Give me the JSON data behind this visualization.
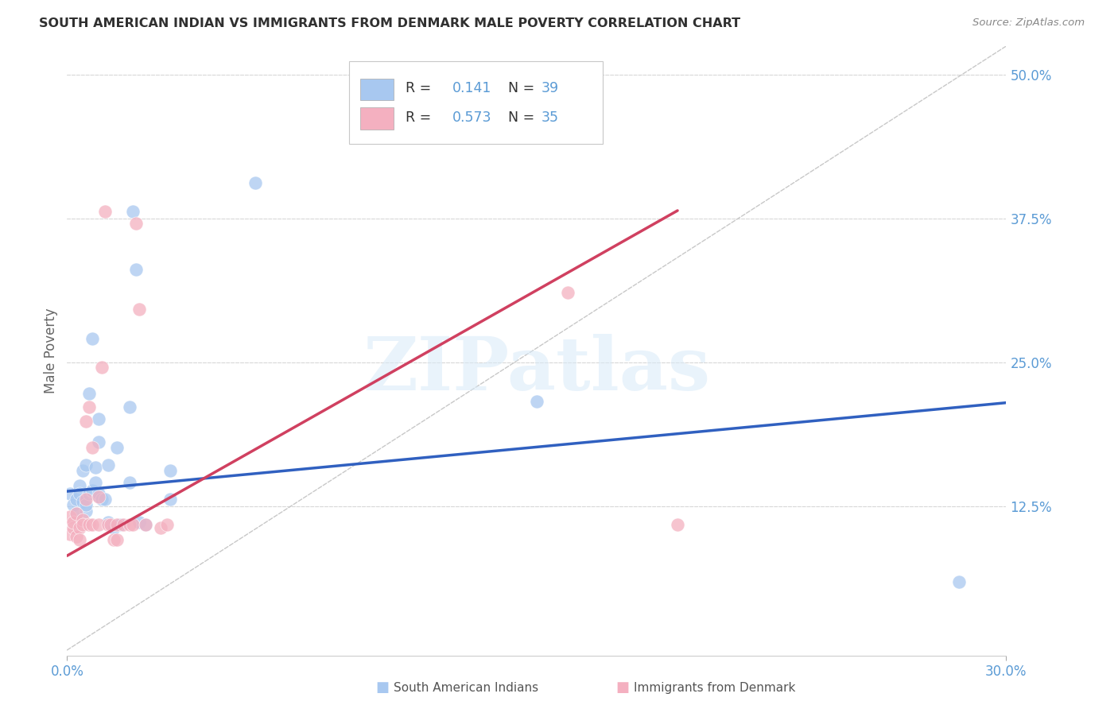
{
  "title": "SOUTH AMERICAN INDIAN VS IMMIGRANTS FROM DENMARK MALE POVERTY CORRELATION CHART",
  "source": "Source: ZipAtlas.com",
  "ylabel": "Male Poverty",
  "right_yticks": [
    "50.0%",
    "37.5%",
    "25.0%",
    "12.5%"
  ],
  "right_ytick_vals": [
    0.5,
    0.375,
    0.25,
    0.125
  ],
  "xlim": [
    0.0,
    0.3
  ],
  "ylim": [
    -0.005,
    0.525
  ],
  "watermark": "ZIPatlas",
  "legend_r1": "0.141",
  "legend_n1": "39",
  "legend_r2": "0.573",
  "legend_n2": "35",
  "blue_color": "#a8c8f0",
  "pink_color": "#f4b0c0",
  "blue_line_color": "#3060c0",
  "pink_line_color": "#d04060",
  "diagonal_color": "#c8c8c8",
  "grid_color": "#d8d8d8",
  "title_color": "#303030",
  "axis_label_color": "#5b9bd5",
  "legend_text_color": "#5b9bd5",
  "bottom_legend": [
    {
      "label": "South American Indians",
      "color": "#a8c8f0"
    },
    {
      "label": "Immigrants from Denmark",
      "color": "#f4b0c0"
    }
  ],
  "blue_scatter": [
    [
      0.001,
      0.136
    ],
    [
      0.002,
      0.126
    ],
    [
      0.003,
      0.131
    ],
    [
      0.003,
      0.119
    ],
    [
      0.004,
      0.143
    ],
    [
      0.004,
      0.136
    ],
    [
      0.005,
      0.156
    ],
    [
      0.005,
      0.129
    ],
    [
      0.006,
      0.121
    ],
    [
      0.006,
      0.161
    ],
    [
      0.006,
      0.126
    ],
    [
      0.007,
      0.223
    ],
    [
      0.007,
      0.136
    ],
    [
      0.008,
      0.139
    ],
    [
      0.008,
      0.271
    ],
    [
      0.009,
      0.159
    ],
    [
      0.009,
      0.146
    ],
    [
      0.01,
      0.134
    ],
    [
      0.01,
      0.181
    ],
    [
      0.01,
      0.136
    ],
    [
      0.01,
      0.201
    ],
    [
      0.011,
      0.131
    ],
    [
      0.012,
      0.131
    ],
    [
      0.013,
      0.161
    ],
    [
      0.013,
      0.111
    ],
    [
      0.015,
      0.106
    ],
    [
      0.016,
      0.176
    ],
    [
      0.017,
      0.109
    ],
    [
      0.02,
      0.146
    ],
    [
      0.02,
      0.211
    ],
    [
      0.021,
      0.381
    ],
    [
      0.022,
      0.331
    ],
    [
      0.023,
      0.111
    ],
    [
      0.025,
      0.109
    ],
    [
      0.033,
      0.156
    ],
    [
      0.033,
      0.131
    ],
    [
      0.06,
      0.406
    ],
    [
      0.15,
      0.216
    ],
    [
      0.285,
      0.059
    ]
  ],
  "pink_scatter": [
    [
      0.001,
      0.101
    ],
    [
      0.001,
      0.116
    ],
    [
      0.002,
      0.106
    ],
    [
      0.002,
      0.111
    ],
    [
      0.003,
      0.099
    ],
    [
      0.003,
      0.119
    ],
    [
      0.004,
      0.106
    ],
    [
      0.004,
      0.096
    ],
    [
      0.005,
      0.113
    ],
    [
      0.005,
      0.109
    ],
    [
      0.006,
      0.131
    ],
    [
      0.006,
      0.199
    ],
    [
      0.007,
      0.109
    ],
    [
      0.007,
      0.211
    ],
    [
      0.008,
      0.109
    ],
    [
      0.008,
      0.176
    ],
    [
      0.01,
      0.133
    ],
    [
      0.01,
      0.109
    ],
    [
      0.011,
      0.246
    ],
    [
      0.012,
      0.381
    ],
    [
      0.013,
      0.109
    ],
    [
      0.014,
      0.109
    ],
    [
      0.015,
      0.096
    ],
    [
      0.016,
      0.096
    ],
    [
      0.016,
      0.109
    ],
    [
      0.018,
      0.109
    ],
    [
      0.02,
      0.109
    ],
    [
      0.021,
      0.109
    ],
    [
      0.022,
      0.371
    ],
    [
      0.023,
      0.296
    ],
    [
      0.025,
      0.109
    ],
    [
      0.03,
      0.106
    ],
    [
      0.032,
      0.109
    ],
    [
      0.16,
      0.311
    ],
    [
      0.195,
      0.109
    ]
  ],
  "blue_trendline": [
    0.0,
    0.138,
    0.3,
    0.215
  ],
  "pink_trendline": [
    0.0,
    0.082,
    0.195,
    0.382
  ],
  "diagonal_line": [
    0.0,
    0.0,
    0.3,
    0.525
  ]
}
